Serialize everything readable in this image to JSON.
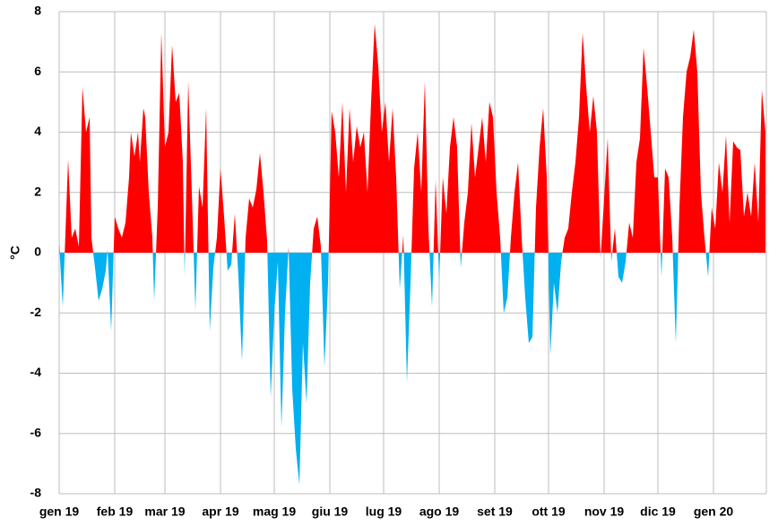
{
  "chart_data": {
    "type": "area",
    "y_label": "°C",
    "x": [
      0,
      2,
      5,
      7,
      9,
      11,
      13,
      15,
      17,
      18,
      20,
      22,
      24,
      26,
      27,
      29,
      31,
      33,
      35,
      37,
      39,
      40,
      42,
      44,
      45,
      47,
      48,
      50,
      52,
      53,
      55,
      57,
      59,
      61,
      63,
      65,
      67,
      69,
      70,
      72,
      74,
      76,
      78,
      80,
      82,
      84,
      86,
      88,
      90,
      92,
      94,
      96,
      98,
      100,
      102,
      104,
      106,
      108,
      110,
      112,
      114,
      116,
      118,
      120,
      122,
      124,
      126,
      128,
      130,
      132,
      134,
      136,
      138,
      140,
      142,
      144,
      146,
      148,
      150,
      152,
      154,
      156,
      158,
      160,
      162,
      164,
      166,
      168,
      170,
      172,
      174,
      176,
      178,
      180,
      182,
      184,
      186,
      188,
      190,
      192,
      194,
      196,
      198,
      200,
      202,
      204,
      206,
      208,
      210,
      212,
      214,
      216,
      218,
      220,
      222,
      224,
      226,
      228,
      230,
      232,
      234,
      236,
      238,
      240,
      242,
      244,
      246,
      248,
      250,
      252,
      254,
      256,
      258,
      260,
      262,
      264,
      266,
      268,
      270,
      272,
      274,
      276,
      278,
      280,
      282,
      284,
      286,
      288,
      290,
      292,
      294,
      296,
      298,
      300,
      302,
      304,
      306,
      308,
      310,
      312,
      314,
      316,
      318,
      320,
      322,
      324,
      326,
      328,
      330,
      332,
      334,
      336,
      338,
      340,
      342,
      344,
      346,
      348,
      350,
      352,
      354,
      356,
      358,
      360,
      362,
      364,
      366,
      368,
      370,
      372,
      374,
      376,
      378,
      380,
      382,
      384,
      386,
      388,
      390,
      392,
      394
    ],
    "series": [
      {
        "values": [
          0.3,
          -1.8,
          3.1,
          0.5,
          0.8,
          0.2,
          5.5,
          4.0,
          4.5,
          0.5,
          -0.5,
          -1.6,
          -1.2,
          -0.6,
          0.1,
          -2.6,
          1.2,
          0.8,
          0.5,
          1.0,
          2.5,
          4.0,
          3.2,
          4.0,
          3.0,
          4.8,
          4.5,
          2.0,
          0.5,
          -1.6,
          1.5,
          7.3,
          3.5,
          4.0,
          6.9,
          5.0,
          5.3,
          3.0,
          -0.8,
          5.7,
          2.0,
          -1.9,
          2.2,
          1.5,
          4.8,
          -2.6,
          -0.5,
          0.5,
          2.8,
          1.2,
          -0.6,
          -0.4,
          1.3,
          -0.8,
          -3.6,
          0.5,
          1.8,
          1.5,
          2.1,
          3.3,
          2.0,
          0.4,
          -4.8,
          -2.0,
          -0.3,
          -5.8,
          -2.0,
          0.2,
          -4.5,
          -6.5,
          -7.7,
          -3.0,
          -5.0,
          -1.0,
          0.8,
          1.2,
          0.2,
          -3.8,
          -1.0,
          4.7,
          4.0,
          2.5,
          5.0,
          2.0,
          4.8,
          3.0,
          4.2,
          3.5,
          4.0,
          2.0,
          5.0,
          7.6,
          6.2,
          4.0,
          5.0,
          3.0,
          4.8,
          2.5,
          -1.2,
          0.6,
          -4.3,
          -1.0,
          2.8,
          4.0,
          2.0,
          5.7,
          0.8,
          -1.8,
          2.4,
          -0.9,
          2.5,
          1.3,
          3.5,
          4.5,
          3.5,
          -0.5,
          1.0,
          2.0,
          4.3,
          2.5,
          3.5,
          4.5,
          3.0,
          5.0,
          4.5,
          2.0,
          0.5,
          -2.0,
          -1.5,
          0.5,
          2.0,
          3.0,
          0.5,
          -1.5,
          -3.0,
          -2.8,
          1.5,
          3.5,
          4.8,
          2.5,
          -3.4,
          -1.0,
          -2.0,
          -0.3,
          0.5,
          0.8,
          2.0,
          3.0,
          4.5,
          7.3,
          5.5,
          4.0,
          5.2,
          4.0,
          -0.2,
          1.8,
          3.8,
          -0.3,
          0.8,
          -0.8,
          -1.0,
          -0.3,
          1.0,
          0.5,
          3.0,
          3.8,
          6.8,
          5.5,
          4.0,
          2.5,
          2.5,
          -0.8,
          2.8,
          2.5,
          0.5,
          -3.0,
          1.5,
          4.5,
          6.0,
          6.5,
          7.4,
          6.0,
          2.0,
          0.5,
          -0.8,
          1.5,
          0.8,
          3.0,
          2.0,
          3.9,
          1.0,
          3.7,
          3.5,
          3.4,
          1.2,
          2.0,
          1.2,
          3.0,
          1.0,
          5.4,
          4.0
        ]
      }
    ],
    "color_above": "#ff0000",
    "color_below": "#00b0f0",
    "xlim": [
      0,
      394.5
    ],
    "xticks": [
      {
        "value": 0,
        "label": "gen 19"
      },
      {
        "value": 31,
        "label": "feb 19"
      },
      {
        "value": 59,
        "label": "mar 19"
      },
      {
        "value": 90,
        "label": "apr 19"
      },
      {
        "value": 120,
        "label": "mag 19"
      },
      {
        "value": 151,
        "label": "giu 19"
      },
      {
        "value": 181,
        "label": "lug 19"
      },
      {
        "value": 212,
        "label": "ago 19"
      },
      {
        "value": 243,
        "label": "set 19"
      },
      {
        "value": 273,
        "label": "ott 19"
      },
      {
        "value": 304,
        "label": "nov 19"
      },
      {
        "value": 334,
        "label": "dic 19"
      },
      {
        "value": 365,
        "label": "gen 20"
      }
    ],
    "ylim": [
      -8,
      8
    ],
    "yticks": [
      -8,
      -6,
      -4,
      -2,
      0,
      2,
      4,
      6,
      8
    ],
    "grid": true
  }
}
